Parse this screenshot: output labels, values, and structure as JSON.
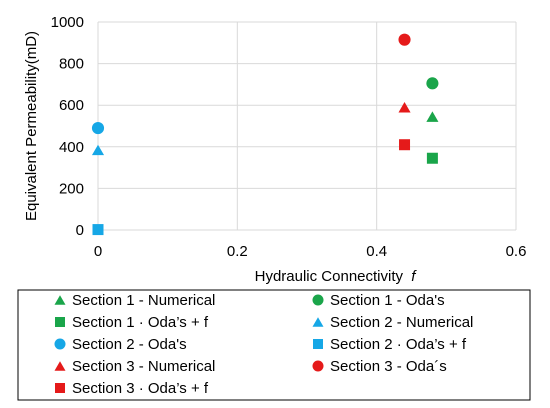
{
  "chart_data": {
    "type": "scatter",
    "title": "",
    "xlabel": "Hydraulic Connectivity",
    "xlabel_symbol": "f",
    "ylabel": "Equivalent Permeability(mD)",
    "xlim": [
      0,
      0.6
    ],
    "ylim": [
      0,
      1000
    ],
    "xticks": [
      0,
      0.2,
      0.4,
      0.6
    ],
    "yticks": [
      0,
      200,
      400,
      600,
      800,
      1000
    ],
    "xtick_labels": [
      "0",
      "0.2",
      "0.4",
      "0.6"
    ],
    "ytick_labels": [
      "0",
      "200",
      "400",
      "600",
      "800",
      "1000"
    ],
    "grid": "vertical and horizontal major gridlines",
    "legend_position": "bottom",
    "series": [
      {
        "name": "Section 1 - Numerical",
        "color": "#1aa54a",
        "marker": "triangle",
        "points": [
          {
            "x": 0.48,
            "y": 545
          }
        ]
      },
      {
        "name": "Section 1 - Oda's",
        "color": "#1aa54a",
        "marker": "circle",
        "points": [
          {
            "x": 0.48,
            "y": 705
          }
        ]
      },
      {
        "name": "Section 1 - Oda’s + f",
        "color": "#1aa54a",
        "marker": "square",
        "points": [
          {
            "x": 0.48,
            "y": 345
          }
        ]
      },
      {
        "name": "Section 2 - Numerical",
        "color": "#16a7e6",
        "marker": "triangle",
        "points": [
          {
            "x": 0,
            "y": 385
          }
        ]
      },
      {
        "name": "Section 2 - Oda's",
        "color": "#16a7e6",
        "marker": "circle",
        "points": [
          {
            "x": 0,
            "y": 490
          }
        ]
      },
      {
        "name": "Section 2 - Oda’s + f",
        "color": "#16a7e6",
        "marker": "square",
        "points": [
          {
            "x": 0,
            "y": 2
          }
        ]
      },
      {
        "name": "Section 3 - Numerical",
        "color": "#e51a1a",
        "marker": "triangle",
        "points": [
          {
            "x": 0.44,
            "y": 590
          }
        ]
      },
      {
        "name": "Section 3 - Oda´s",
        "color": "#e51a1a",
        "marker": "circle",
        "points": [
          {
            "x": 0.44,
            "y": 915
          }
        ]
      },
      {
        "name": "Section 3 - Oda’s + f",
        "color": "#e51a1a",
        "marker": "square",
        "points": [
          {
            "x": 0.44,
            "y": 410
          }
        ]
      }
    ],
    "legend_entries": [
      {
        "name": "Section 1 - Numerical"
      },
      {
        "name": "Section 1 - Oda's"
      },
      {
        "name": "Section 1 · Oda’s + f"
      },
      {
        "name": "Section 2 - Numerical"
      },
      {
        "name": "Section 2 - Oda's"
      },
      {
        "name": "Section 2 · Oda’s + f"
      },
      {
        "name": "Section 3 - Numerical"
      },
      {
        "name": "Section 3 - Oda´s"
      },
      {
        "name": "Section 3 · Oda’s + f"
      }
    ]
  }
}
